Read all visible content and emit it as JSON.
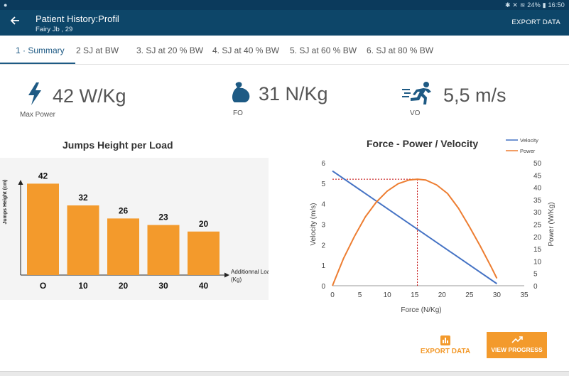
{
  "statusbar": {
    "right": "✱ ✕ ≋ 24% ▮ 16:50"
  },
  "appbar": {
    "title": "Patient History:Profil",
    "subtitle": "Fairy Jb , 29",
    "export_label": "EXPORT DATA"
  },
  "tabs": [
    {
      "label": "1 · Summary",
      "active": true
    },
    {
      "label": "2  SJ at BW"
    },
    {
      "label": "3. SJ at 20 % BW"
    },
    {
      "label": "4. SJ at 40 % BW"
    },
    {
      "label": "5. SJ at 60 % BW"
    },
    {
      "label": "6. SJ at 80 % BW"
    }
  ],
  "metrics": [
    {
      "icon": "lightning-icon",
      "value": "42 W/Kg",
      "label": "Max Power"
    },
    {
      "icon": "flexed-arm-icon",
      "value": "31 N/Kg",
      "label": "FO"
    },
    {
      "icon": "running-person-icon",
      "value": "5,5 m/s",
      "label": "VO"
    }
  ],
  "colors": {
    "accent": "#f39a2c",
    "primary": "#0d4669",
    "velocity": "#4472c4",
    "power": "#ed7d31",
    "bar": "#f39a2c"
  },
  "chart_data": [
    {
      "type": "bar",
      "title": "Jumps Height per Load",
      "categories": [
        "O",
        "10",
        "20",
        "30",
        "40"
      ],
      "values": [
        42,
        32,
        26,
        23,
        20
      ],
      "ylabel": "Jumps Height (cm)",
      "xlabel": "Additionnal Load (Kg)"
    },
    {
      "type": "line",
      "title": "Force - Power / Velocity",
      "xlabel": "Force (N/Kg)",
      "ylabel": "Velocity (m/s)",
      "y2label": "Power (W/Kg)",
      "xlim": [
        0,
        35
      ],
      "ylim": [
        0,
        6
      ],
      "y2lim": [
        0,
        50
      ],
      "xticks": [
        "0",
        "5",
        "10",
        "15",
        "20",
        "25",
        "30",
        "35"
      ],
      "yticks": [
        "0",
        "1",
        "2",
        "3",
        "4",
        "5",
        "6"
      ],
      "y2ticks": [
        "0",
        "5",
        "10",
        "15",
        "20",
        "25",
        "30",
        "35",
        "40",
        "45",
        "50"
      ],
      "legend": "top-right",
      "series": [
        {
          "name": "Velocity",
          "axis": "left",
          "x": [
            0,
            30
          ],
          "y": [
            5.6,
            0.1
          ]
        },
        {
          "name": "Power",
          "axis": "right",
          "x": [
            0,
            2,
            4,
            6,
            8,
            10,
            12,
            14,
            15.5,
            17,
            19,
            21,
            23,
            25,
            27,
            29,
            30
          ],
          "y": [
            0,
            11,
            20,
            28,
            34,
            38.5,
            41.5,
            43,
            43.3,
            43,
            41,
            37.5,
            31.5,
            24,
            16,
            7.5,
            3
          ]
        }
      ],
      "marker": {
        "x": 15.5,
        "y": 5.2,
        "power": 43.3
      }
    }
  ],
  "buttons": {
    "export_data": "EXPORT DATA",
    "view_progress": "VIEW PROGRESS"
  }
}
